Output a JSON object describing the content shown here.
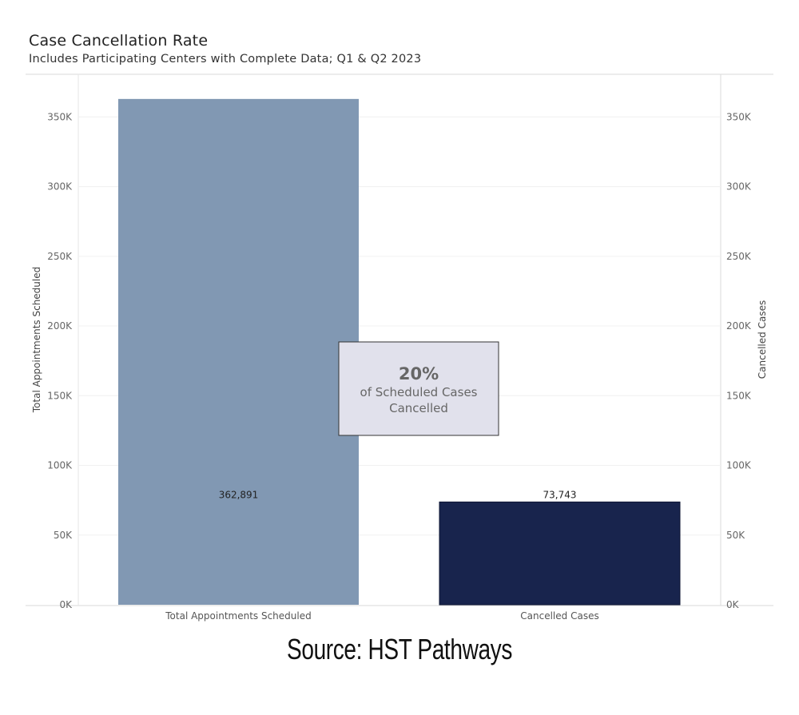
{
  "header": {
    "title": "Case Cancellation Rate",
    "subtitle": "Includes Participating Centers with Complete Data; Q1 & Q2 2023"
  },
  "footer": {
    "source": "Source: HST Pathways"
  },
  "chart_data": {
    "type": "bar",
    "categories": [
      "Total Appointments Scheduled",
      "Cancelled Cases"
    ],
    "values": [
      362891,
      73743
    ],
    "data_labels": [
      "362,891",
      "73,743"
    ],
    "colors": [
      "#8198b3",
      "#18244d"
    ],
    "ylabel_left": "Total Appointments Scheduled",
    "ylabel_right": "Cancelled Cases",
    "ylim": [
      0,
      380000
    ],
    "yticks": [
      0,
      50000,
      100000,
      150000,
      200000,
      250000,
      300000,
      350000
    ],
    "ytick_labels": [
      "0K",
      "50K",
      "100K",
      "150K",
      "200K",
      "250K",
      "300K",
      "350K"
    ],
    "grid": true,
    "annotation": {
      "value": "20%",
      "line1": "of Scheduled Cases",
      "line2": "Cancelled",
      "fill": "#e1e1ec"
    }
  }
}
